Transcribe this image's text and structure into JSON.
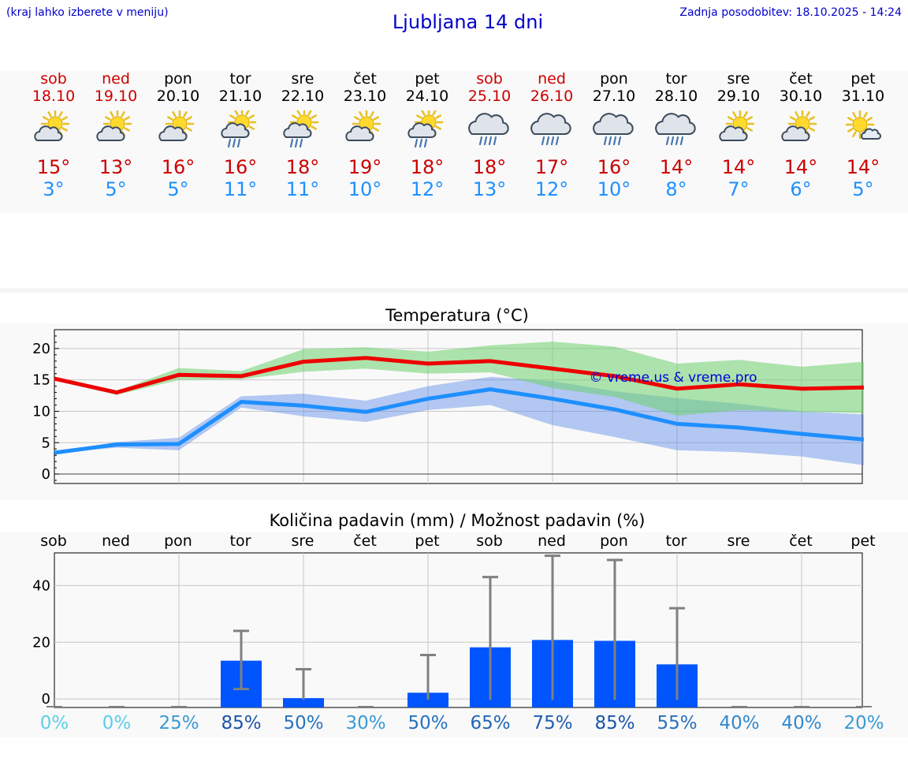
{
  "header": {
    "hint": "(kraj lahko izberete v meniju)",
    "title": "Ljubljana 14 dni",
    "updated": "Zadnja posodobitev: 18.10.2025 - 14:24"
  },
  "colors": {
    "weekend": "#cc0000",
    "weekday": "#000000",
    "tmax": "#cc0000",
    "tmin": "#1e90ff",
    "accent": "#0000cc",
    "bar": "#0055ff"
  },
  "days": [
    {
      "name": "sob",
      "date": "18.10",
      "weekend": true,
      "icon": "sun-cloud-icon",
      "tmax": "15°",
      "tmin": "3°",
      "pct": "0%",
      "pct_color": "#5bcfe8"
    },
    {
      "name": "ned",
      "date": "19.10",
      "weekend": true,
      "icon": "sun-cloud-icon",
      "tmax": "13°",
      "tmin": "5°",
      "pct": "0%",
      "pct_color": "#5bcfe8"
    },
    {
      "name": "pon",
      "date": "20.10",
      "weekend": false,
      "icon": "sun-cloud-icon",
      "tmax": "16°",
      "tmin": "5°",
      "pct": "25%",
      "pct_color": "#3a9ad6"
    },
    {
      "name": "tor",
      "date": "21.10",
      "weekend": false,
      "icon": "sun-cloud-rain-icon",
      "tmax": "16°",
      "tmin": "11°",
      "pct": "85%",
      "pct_color": "#1b55a8"
    },
    {
      "name": "sre",
      "date": "22.10",
      "weekend": false,
      "icon": "sun-cloud-rain-icon",
      "tmax": "18°",
      "tmin": "11°",
      "pct": "50%",
      "pct_color": "#2673bf"
    },
    {
      "name": "čet",
      "date": "23.10",
      "weekend": false,
      "icon": "sun-cloud-icon",
      "tmax": "19°",
      "tmin": "10°",
      "pct": "30%",
      "pct_color": "#3a9ad6"
    },
    {
      "name": "pet",
      "date": "24.10",
      "weekend": false,
      "icon": "sun-cloud-rain-icon",
      "tmax": "18°",
      "tmin": "12°",
      "pct": "50%",
      "pct_color": "#2673bf"
    },
    {
      "name": "sob",
      "date": "25.10",
      "weekend": true,
      "icon": "cloud-rain-icon",
      "tmax": "18°",
      "tmin": "13°",
      "pct": "65%",
      "pct_color": "#2266b5"
    },
    {
      "name": "ned",
      "date": "26.10",
      "weekend": true,
      "icon": "cloud-rain-icon",
      "tmax": "17°",
      "tmin": "12°",
      "pct": "75%",
      "pct_color": "#1e5eae"
    },
    {
      "name": "pon",
      "date": "27.10",
      "weekend": false,
      "icon": "cloud-rain-icon",
      "tmax": "16°",
      "tmin": "10°",
      "pct": "85%",
      "pct_color": "#1b55a8"
    },
    {
      "name": "tor",
      "date": "28.10",
      "weekend": false,
      "icon": "cloud-rain-icon",
      "tmax": "14°",
      "tmin": "8°",
      "pct": "55%",
      "pct_color": "#2670bd"
    },
    {
      "name": "sre",
      "date": "29.10",
      "weekend": false,
      "icon": "sun-cloud-icon",
      "tmax": "14°",
      "tmin": "7°",
      "pct": "40%",
      "pct_color": "#3389cc"
    },
    {
      "name": "čet",
      "date": "30.10",
      "weekend": false,
      "icon": "sun-cloud-icon",
      "tmax": "14°",
      "tmin": "6°",
      "pct": "40%",
      "pct_color": "#3389cc"
    },
    {
      "name": "pet",
      "date": "31.10",
      "weekend": false,
      "icon": "sun-small-cloud-icon",
      "tmax": "14°",
      "tmin": "5°",
      "pct": "20%",
      "pct_color": "#3a9ad6"
    }
  ],
  "chart_data": [
    {
      "type": "line",
      "title": "Temperatura (°C)",
      "watermark": "© vreme.us & vreme.pro",
      "x": [
        "18.10",
        "19.10",
        "20.10",
        "21.10",
        "22.10",
        "23.10",
        "24.10",
        "25.10",
        "26.10",
        "27.10",
        "28.10",
        "29.10",
        "30.10",
        "31.10"
      ],
      "ylim": [
        -1.5,
        23
      ],
      "yticks": [
        0,
        5,
        10,
        15,
        20
      ],
      "grid": true,
      "series": [
        {
          "key": "max",
          "values": [
            15.2,
            13.0,
            15.8,
            15.6,
            17.9,
            18.5,
            17.6,
            18.0,
            16.8,
            15.6,
            13.6,
            14.3,
            13.6,
            13.8
          ],
          "band_low": [
            15.0,
            12.6,
            15.0,
            15.1,
            16.3,
            16.8,
            16.0,
            16.2,
            13.7,
            12.3,
            9.3,
            10.2,
            9.9,
            9.7
          ],
          "band_high": [
            15.3,
            13.2,
            16.9,
            16.4,
            19.9,
            20.2,
            19.5,
            20.5,
            21.1,
            20.3,
            17.6,
            18.2,
            17.1,
            17.9
          ]
        },
        {
          "key": "min",
          "values": [
            3.4,
            4.7,
            4.8,
            11.5,
            10.9,
            9.9,
            12.0,
            13.5,
            12.0,
            10.3,
            8.0,
            7.4,
            6.4,
            5.5
          ],
          "band_low": [
            3.4,
            4.2,
            3.8,
            10.6,
            9.2,
            8.3,
            10.2,
            11.0,
            7.8,
            5.9,
            3.8,
            3.5,
            2.8,
            1.4
          ],
          "band_high": [
            3.5,
            5.1,
            5.8,
            12.4,
            12.8,
            11.7,
            14.0,
            15.5,
            14.8,
            13.2,
            12.1,
            11.2,
            10.0,
            9.5
          ]
        }
      ]
    },
    {
      "type": "bar",
      "title": "Količina padavin (mm) / Možnost padavin (%)",
      "categories": [
        "sob",
        "ned",
        "pon",
        "tor",
        "sre",
        "čet",
        "pet",
        "sob",
        "ned",
        "pon",
        "tor",
        "sre",
        "čet",
        "pet"
      ],
      "values": [
        0,
        0,
        0,
        13.5,
        0.3,
        0,
        2.2,
        18.2,
        20.8,
        20.5,
        12.2,
        0,
        0,
        0
      ],
      "error_low": [
        0,
        0,
        0,
        3.5,
        0,
        0,
        0,
        0,
        0,
        0,
        0,
        0,
        0,
        0
      ],
      "error_high": [
        0,
        0,
        0,
        24,
        10.5,
        0,
        15.5,
        43,
        50.5,
        49,
        32,
        0,
        0,
        0
      ],
      "ylim": [
        -3,
        51.5
      ],
      "yticks": [
        0,
        20,
        40
      ],
      "chance": [
        "0%",
        "0%",
        "25%",
        "85%",
        "50%",
        "30%",
        "50%",
        "65%",
        "75%",
        "85%",
        "55%",
        "40%",
        "40%",
        "20%"
      ],
      "grid": true
    }
  ]
}
